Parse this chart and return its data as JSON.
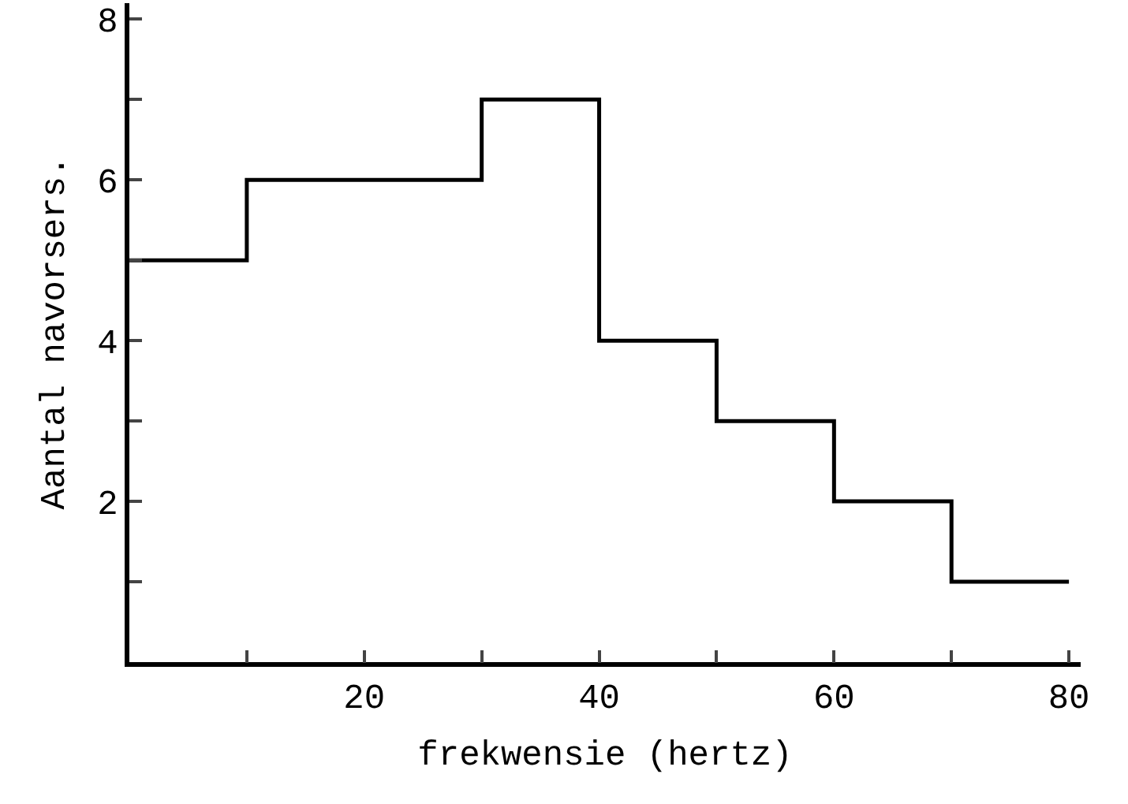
{
  "chart_data": {
    "type": "histogram",
    "xlabel": "frekwensie (hertz)",
    "ylabel": "Aantal navorsers.",
    "bins": [
      0,
      10,
      20,
      30,
      40,
      50,
      60,
      70,
      80
    ],
    "values": [
      5,
      6,
      6,
      7,
      4,
      3,
      2,
      1
    ],
    "color": "#000000",
    "xlim": [
      0,
      81
    ],
    "xticks": [
      {
        "value": 10,
        "label": null
      },
      20,
      {
        "value": 30,
        "label": null
      },
      40,
      {
        "value": 50,
        "label": null
      },
      60,
      {
        "value": 70,
        "label": null
      },
      80
    ],
    "ylim": [
      0,
      8.2
    ],
    "yticks": [
      {
        "value": 1,
        "label": null
      },
      2,
      {
        "value": 3,
        "label": null
      },
      4,
      {
        "value": 5,
        "label": null
      },
      6,
      {
        "value": 7,
        "label": null
      },
      8
    ]
  }
}
